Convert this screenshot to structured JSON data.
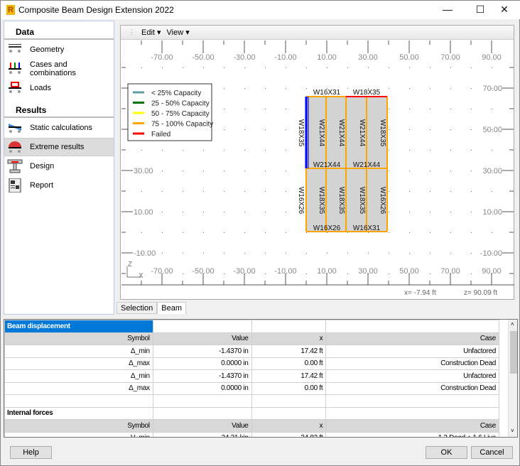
{
  "window": {
    "title": "Composite Beam Design Extension 2022",
    "app_icon_letter": "R",
    "minimize": "—",
    "maximize": "☐",
    "close": "✕"
  },
  "sidebar": {
    "data_header": "Data",
    "results_header": "Results",
    "data_items": [
      {
        "label": "Geometry",
        "icon": "geometry-icon"
      },
      {
        "label": "Cases and combinations",
        "icon": "cases-icon"
      },
      {
        "label": "Loads",
        "icon": "loads-icon"
      }
    ],
    "result_items": [
      {
        "label": "Static calculations",
        "icon": "static-icon"
      },
      {
        "label": "Extreme results",
        "icon": "extreme-icon",
        "selected": true
      },
      {
        "label": "Design",
        "icon": "design-icon"
      },
      {
        "label": "Report",
        "icon": "report-icon"
      }
    ]
  },
  "toolbar": {
    "edit": "Edit ▾",
    "view": "View ▾"
  },
  "plot": {
    "x_ticks": [
      "-70.00",
      "-50.00",
      "-30.00",
      "-10.00",
      "10.00",
      "30.00",
      "50.00",
      "70.00",
      "90.00"
    ],
    "y_ticks": [
      "70.00",
      "50.00",
      "30.00",
      "10.00",
      "-10.00"
    ],
    "axis_z": "Z",
    "axis_x": "X",
    "legend": [
      {
        "label": "< 25% Capacity",
        "color": "#5f9ea0"
      },
      {
        "label": "25 - 50% Capacity",
        "color": "#007a00"
      },
      {
        "label": "50 - 75% Capacity",
        "color": "#ffff00"
      },
      {
        "label": "75 - 100% Capacity",
        "color": "#ffa500"
      },
      {
        "label": "Failed",
        "color": "#ff0000"
      }
    ],
    "beams": {
      "top_left": "W16X31",
      "top_right": "W18X35",
      "left_upper": "W18X35",
      "upper_infill": [
        "W21X44",
        "W21X44",
        "W21X44",
        "W18X35"
      ],
      "mid_left": "W21X44",
      "mid_right": "W21X44",
      "left_lower": "W16X26",
      "lower_infill": [
        "W18X35",
        "W18X35",
        "W18X35",
        "W16X26"
      ],
      "bottom_left": "W16X26",
      "bottom_right": "W16X31"
    },
    "readout_x": "x= -7.94 ft",
    "readout_z": "z= 90.09 ft"
  },
  "tabs": [
    "Selection",
    "Beam"
  ],
  "table": {
    "sections": [
      {
        "title": "Beam displacement",
        "headers": [
          "Symbol",
          "Value",
          "x",
          "Case"
        ],
        "rows": [
          [
            "Δ_min",
            "-1.4370 in",
            "17.42 ft",
            "Unfactored"
          ],
          [
            "Δ_max",
            "0.0000 in",
            "0.00 ft",
            "Construction Dead"
          ],
          [
            "Δ_min",
            "-1.4370 in",
            "17.42 ft",
            "Unfactored"
          ],
          [
            "Δ_max",
            "0.0000 in",
            "0.00 ft",
            "Construction Dead"
          ]
        ]
      },
      {
        "title": "Internal forces",
        "headers": [
          "Symbol",
          "Value",
          "x",
          "Case"
        ],
        "rows": [
          [
            "V_min",
            "-24.21 kip",
            "34.83 ft",
            "1.2 Dead + 1.6 Live"
          ]
        ]
      }
    ]
  },
  "buttons": {
    "help": "Help",
    "ok": "OK",
    "cancel": "Cancel"
  }
}
